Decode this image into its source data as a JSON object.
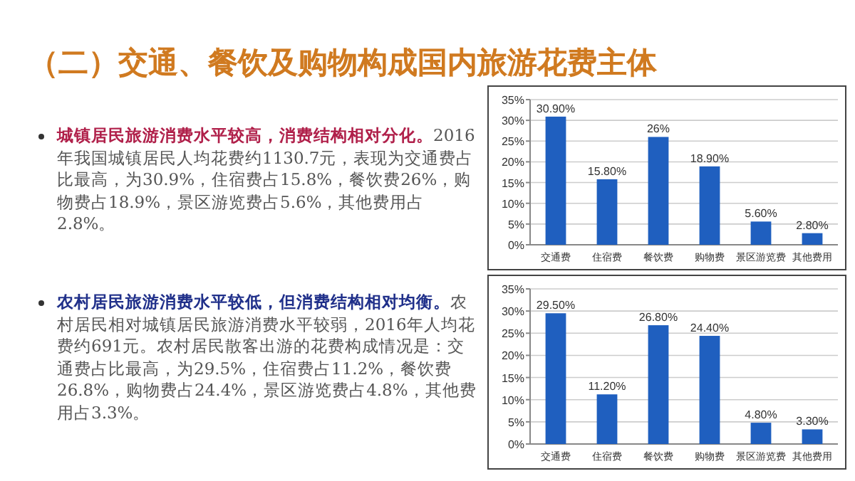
{
  "chart_data": [
    {
      "type": "bar",
      "title": "（二）交通、餐饮及购物构成国内旅游花费主体",
      "annotations": [
        "城镇居民旅游消费水平较高，消费结构相对分化。",
        "2016年我国城镇居民人均花费约1130.7元，表现为交通费占比最高，为30.9%，住宿费占15.8%，餐饮费26%，购物费占18.9%，景区游览费占5.6%，其他费用占2.8%。"
      ],
      "categories": [
        "交通费",
        "住宿费",
        "餐饮费",
        "购物费",
        "景区游览费",
        "其他费用"
      ],
      "values": [
        30.9,
        15.8,
        26,
        18.9,
        5.6,
        2.8
      ],
      "value_labels": [
        "30.90%",
        "15.80%",
        "26%",
        "18.90%",
        "5.60%",
        "2.80%"
      ],
      "color": "#1f5fbf",
      "ylim": [
        0,
        35
      ],
      "yticks": [
        {
          "value": 0,
          "label": "0%"
        },
        {
          "value": 5,
          "label": "5%"
        },
        {
          "value": 10,
          "label": "10%"
        },
        {
          "value": 15,
          "label": "15%"
        },
        {
          "value": 20,
          "label": "20%"
        },
        {
          "value": 25,
          "label": "25%"
        },
        {
          "value": 30,
          "label": "30%"
        },
        {
          "value": 35,
          "label": "35%"
        }
      ],
      "grid": "y"
    },
    {
      "type": "bar",
      "annotations": [
        "农村居民旅游消费水平较低，但消费结构相对均衡。",
        "农村居民相对城镇居民旅游消费水平较弱，2016年人均花费约691元。农村居民散客出游的花费构成情况是：交通费占比最高，为29.5%，住宿费占11.2%，餐饮费26.8%，购物费占24.4%，景区游览费占4.8%，其他费用占3.3%。"
      ],
      "categories": [
        "交通费",
        "住宿费",
        "餐饮费",
        "购物费",
        "景区游览费",
        "其他费用"
      ],
      "values": [
        29.5,
        11.2,
        26.8,
        24.4,
        4.8,
        3.3
      ],
      "value_labels": [
        "29.50%",
        "11.20%",
        "26.80%",
        "24.40%",
        "4.80%",
        "3.30%"
      ],
      "color": "#1f5fbf",
      "ylim": [
        0,
        35
      ],
      "yticks": [
        {
          "value": 0,
          "label": "0%"
        },
        {
          "value": 5,
          "label": "5%"
        },
        {
          "value": 10,
          "label": "10%"
        },
        {
          "value": 15,
          "label": "15%"
        },
        {
          "value": 20,
          "label": "20%"
        },
        {
          "value": 25,
          "label": "25%"
        },
        {
          "value": 30,
          "label": "30%"
        },
        {
          "value": 35,
          "label": "35%"
        }
      ],
      "grid": "y"
    }
  ]
}
